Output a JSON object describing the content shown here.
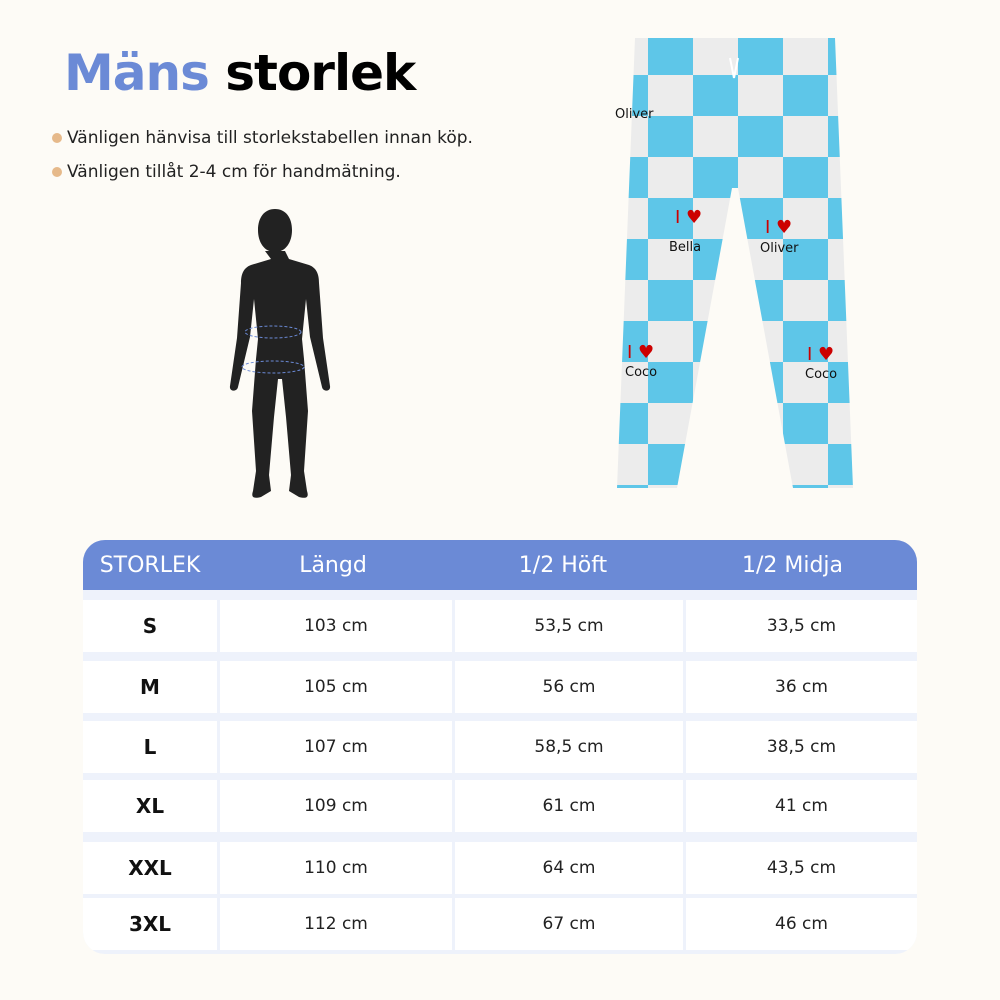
{
  "title": {
    "part1": "Mäns",
    "part2": "storlek",
    "accent": "#6b8ad6"
  },
  "notes": [
    "Vänligen hänvisa till storlekstabellen innan köp.",
    "Vänligen tillåt 2-4 cm för handmätning."
  ],
  "pants": {
    "colors": {
      "blue": "#5ec6e8",
      "white": "#ececec"
    },
    "labels": [
      {
        "heart": "I ♥",
        "name": "Oliver"
      },
      {
        "heart": "I ♥",
        "name": "Bella"
      },
      {
        "heart": "I ♥",
        "name": "Coco"
      }
    ]
  },
  "table": {
    "headers": [
      "STORLEK",
      "Längd",
      "1/2 Höft",
      "1/2 Midja"
    ],
    "rows": [
      [
        "S",
        "103 cm",
        "53,5 cm",
        "33,5 cm"
      ],
      [
        "M",
        "105 cm",
        "56 cm",
        "36 cm"
      ],
      [
        "L",
        "107 cm",
        "58,5 cm",
        "38,5 cm"
      ],
      [
        "XL",
        "109 cm",
        "61 cm",
        "41 cm"
      ],
      [
        "XXL",
        "110 cm",
        "64 cm",
        "43,5 cm"
      ],
      [
        "3XL",
        "112 cm",
        "67 cm",
        "46 cm"
      ]
    ]
  }
}
